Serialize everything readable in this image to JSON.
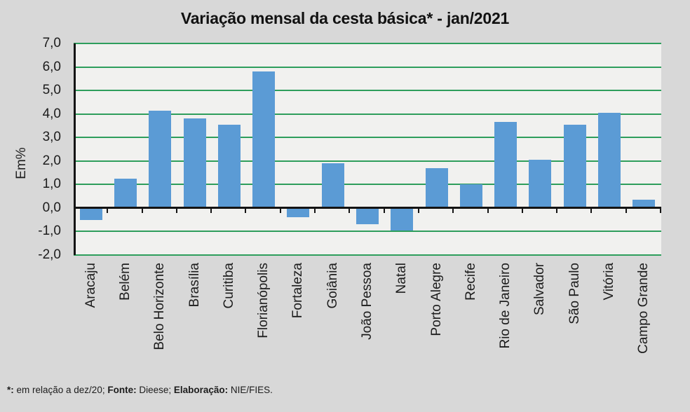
{
  "chart_data": {
    "type": "bar",
    "title": "Variação mensal da cesta básica* - jan/2021",
    "ylabel": "Em%",
    "categories": [
      "Aracaju",
      "Belém",
      "Belo Horizonte",
      "Brasília",
      "Curitiba",
      "Florianópolis",
      "Fortaleza",
      "Goiânia",
      "João Pessoa",
      "Natal",
      "Porto Alegre",
      "Recife",
      "Rio de Janeiro",
      "Salvador",
      "São Paulo",
      "Vitória",
      "Campo Grande"
    ],
    "values": [
      -0.5,
      1.25,
      4.15,
      3.8,
      3.55,
      5.8,
      -0.4,
      1.9,
      -0.7,
      -0.95,
      1.7,
      1.0,
      3.65,
      2.05,
      3.55,
      4.05,
      0.35
    ],
    "ylim": [
      -2.0,
      7.0
    ],
    "y_tick_step": 1.0,
    "y_tick_labels": [
      "7,0",
      "6,0",
      "5,0",
      "4,0",
      "3,0",
      "2,0",
      "1,0",
      "0,0",
      "-1,0",
      "-2,0"
    ],
    "grid": "horizontal",
    "legend": "none"
  },
  "colors": {
    "bar": "#5b9bd5",
    "gridline": "#2e9e5c",
    "axis": "#141414",
    "plot_background": "#f1f1ef",
    "page_background": "#d8d8d8"
  },
  "footnote": {
    "parts": [
      {
        "bold": "*:",
        "text": " em relação a dez/20; "
      },
      {
        "bold": "Fonte:",
        "text": " Dieese; "
      },
      {
        "bold": "Elaboração:",
        "text": " NIE/FIES."
      }
    ]
  }
}
